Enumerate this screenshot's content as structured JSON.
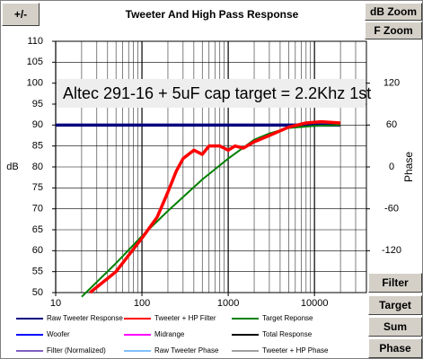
{
  "chart_data": {
    "type": "line",
    "title": "Tweeter  And High Pass Response",
    "annotation": "Altec 291-16 + 5uF cap  target = 2.2Khz 1st",
    "ylabel": "dB",
    "y2label": "Phase",
    "xscale": "log",
    "grid": true,
    "xlim": [
      10,
      40000
    ],
    "xticks": [
      10,
      100,
      1000,
      10000
    ],
    "ylim": [
      50,
      110
    ],
    "yticks": [
      50,
      55,
      60,
      65,
      70,
      75,
      80,
      85,
      90,
      95,
      100,
      105,
      110
    ],
    "y2lim": [
      -180,
      180
    ],
    "y2ticks": [
      -120,
      -60,
      0,
      60,
      120
    ],
    "series": [
      {
        "name": "Raw Tweeter Response",
        "color": "#000080",
        "x": [
          10,
          20000
        ],
        "values": [
          90,
          90
        ]
      },
      {
        "name": "Target Reponse",
        "color": "#008000",
        "x": [
          20,
          50,
          100,
          200,
          500,
          1000,
          2000,
          3000,
          5000,
          10000,
          20000
        ],
        "values": [
          49,
          57,
          63.5,
          69.5,
          77,
          82,
          86.5,
          88,
          89.3,
          89.8,
          90
        ]
      },
      {
        "name": "Tweeter + HP Filter",
        "color": "#ff0000",
        "x": [
          25,
          50,
          100,
          150,
          200,
          250,
          300,
          400,
          500,
          600,
          800,
          1000,
          1200,
          1500,
          2000,
          3000,
          5000,
          8000,
          12000,
          20000
        ],
        "values": [
          50,
          55,
          63,
          68,
          74,
          79,
          82,
          84,
          83,
          85,
          85,
          84,
          85,
          84.5,
          86,
          87.5,
          89.5,
          90.5,
          90.8,
          90.5
        ]
      }
    ],
    "legend": [
      {
        "name": "Raw Tweeter Response",
        "color": "#000080"
      },
      {
        "name": "Tweeter + HP Filter",
        "color": "#ff0000"
      },
      {
        "name": "Target Reponse",
        "color": "#008000"
      },
      {
        "name": "Woofer",
        "color": "#0000ff"
      },
      {
        "name": "Midrange",
        "color": "#ff00ff"
      },
      {
        "name": "Total Response",
        "color": "#000000"
      },
      {
        "name": "Filter (Normalized)",
        "color": "#8060c0"
      },
      {
        "name": "Raw Tweeter Phase",
        "color": "#80c0ff"
      },
      {
        "name": "Tweeter + HP Phase",
        "color": "#a0a0a0"
      }
    ]
  },
  "buttons": [
    "+/-",
    "dB Zoom",
    "F Zoom",
    "Filter",
    "Target",
    "Sum",
    "Phase"
  ]
}
